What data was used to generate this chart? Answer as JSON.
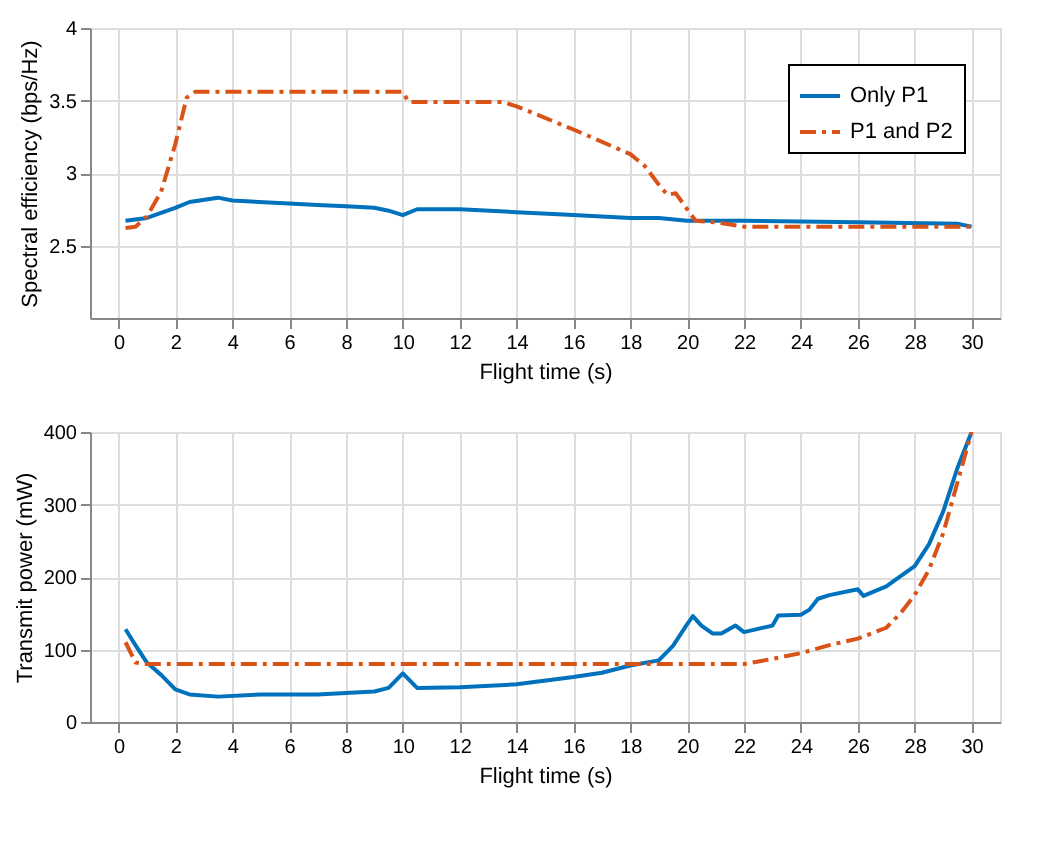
{
  "chart_data": [
    {
      "type": "line",
      "xlabel": "Flight time (s)",
      "ylabel": "Spectral efficiency (bps/Hz)",
      "xlim": [
        -1,
        31
      ],
      "xticks": [
        0,
        2,
        4,
        6,
        8,
        10,
        12,
        14,
        16,
        18,
        20,
        22,
        24,
        26,
        28,
        30
      ],
      "ylim": [
        2,
        4
      ],
      "yticks": [
        2.5,
        3,
        3.5,
        4
      ],
      "grid": true,
      "legend": "top right",
      "series": [
        {
          "name": "Only P1",
          "color": "#0072bd",
          "line_style": "solid",
          "x": [
            0.25,
            1,
            2,
            2.5,
            3.5,
            4,
            6,
            7,
            8,
            9,
            9.5,
            10,
            10.5,
            12,
            14,
            16,
            18,
            19,
            20,
            22,
            26,
            29.5,
            30
          ],
          "values": [
            2.67,
            2.69,
            2.76,
            2.8,
            2.83,
            2.81,
            2.79,
            2.78,
            2.77,
            2.76,
            2.74,
            2.71,
            2.75,
            2.75,
            2.73,
            2.71,
            2.69,
            2.69,
            2.67,
            2.67,
            2.66,
            2.65,
            2.63
          ]
        },
        {
          "name": "P1 and P2",
          "color": "#d95319",
          "line_style": "dashed",
          "x": [
            0.25,
            0.6,
            1,
            1.5,
            2,
            2.4,
            2.7,
            10,
            10.2,
            13.5,
            14,
            16,
            18,
            18.5,
            19,
            19.3,
            19.6,
            20,
            20.3,
            21,
            22,
            30
          ],
          "values": [
            2.62,
            2.63,
            2.7,
            2.87,
            3.2,
            3.52,
            3.56,
            3.56,
            3.49,
            3.49,
            3.46,
            3.3,
            3.13,
            3.05,
            2.92,
            2.85,
            2.86,
            2.75,
            2.67,
            2.66,
            2.63,
            2.63
          ]
        }
      ]
    },
    {
      "type": "line",
      "xlabel": "Flight time (s)",
      "ylabel": "Transmit power (mW)",
      "xlim": [
        -1,
        31
      ],
      "xticks": [
        0,
        2,
        4,
        6,
        8,
        10,
        12,
        14,
        16,
        18,
        20,
        22,
        24,
        26,
        28,
        30
      ],
      "ylim": [
        0,
        400
      ],
      "yticks": [
        0,
        100,
        200,
        300,
        400
      ],
      "grid": true,
      "legend": "top right",
      "series": [
        {
          "name": "Only P1",
          "color": "#0072bd",
          "line_style": "solid",
          "x": [
            0.25,
            0.5,
            1,
            1.5,
            2,
            2.5,
            3.5,
            5,
            7,
            8,
            9,
            9.5,
            10,
            10.5,
            12,
            14,
            16,
            17,
            18,
            19,
            19.5,
            20,
            20.2,
            20.5,
            20.9,
            21.2,
            21.7,
            22,
            23,
            23.2,
            24,
            24.3,
            24.6,
            25,
            26,
            26.2,
            27,
            28,
            28.5,
            29,
            29.5,
            30
          ],
          "values": [
            128,
            112,
            82,
            65,
            45,
            38,
            35,
            38,
            38,
            40,
            42,
            47,
            67,
            47,
            48,
            52,
            62,
            68,
            78,
            85,
            105,
            135,
            146,
            133,
            122,
            122,
            133,
            124,
            133,
            147,
            148,
            155,
            170,
            175,
            183,
            174,
            187,
            215,
            245,
            290,
            350,
            400
          ]
        },
        {
          "name": "P1 and P2",
          "color": "#d95319",
          "line_style": "dashed",
          "x": [
            0.25,
            0.6,
            1,
            22,
            23,
            24,
            25,
            26,
            27,
            27.5,
            28,
            28.5,
            29,
            29.5,
            30
          ],
          "values": [
            110,
            82,
            80,
            80,
            87,
            95,
            106,
            115,
            130,
            150,
            175,
            210,
            260,
            330,
            400
          ]
        }
      ]
    }
  ]
}
